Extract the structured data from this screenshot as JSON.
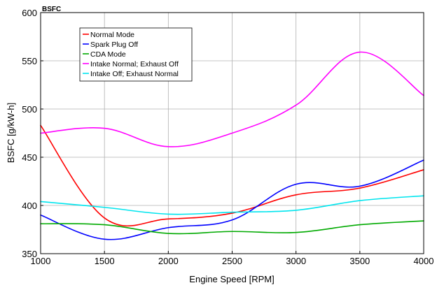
{
  "chart_data": {
    "type": "line",
    "title": "BSFC",
    "xlabel": "Engine Speed [RPM]",
    "ylabel": "BSFC [g/kW-h]",
    "xlim": [
      1000,
      4000
    ],
    "ylim": [
      350,
      600
    ],
    "xticks": [
      1000,
      1500,
      2000,
      2500,
      3000,
      3500,
      4000
    ],
    "yticks": [
      350,
      400,
      450,
      500,
      550,
      600
    ],
    "grid": true,
    "legend_position": "top-left",
    "x": [
      1000,
      1500,
      2000,
      2500,
      3000,
      3500,
      4000
    ],
    "series": [
      {
        "name": "Normal Mode",
        "color": "#ff0000",
        "values": [
          483,
          387,
          386,
          392,
          411,
          418,
          437
        ]
      },
      {
        "name": "Spark Plug Off",
        "color": "#0000ff",
        "values": [
          390,
          365,
          377,
          385,
          422,
          420,
          447
        ]
      },
      {
        "name": "CDA Mode",
        "color": "#00aa00",
        "values": [
          381,
          380,
          371,
          373,
          372,
          380,
          384
        ]
      },
      {
        "name": "Intake Normal; Exhaust Off",
        "color": "#ff00ff",
        "values": [
          475,
          480,
          461,
          475,
          504,
          559,
          514
        ]
      },
      {
        "name": "Intake Off; Exhaust Normal",
        "color": "#00e5ee",
        "values": [
          404,
          398,
          391,
          393,
          395,
          405,
          410
        ]
      }
    ]
  }
}
